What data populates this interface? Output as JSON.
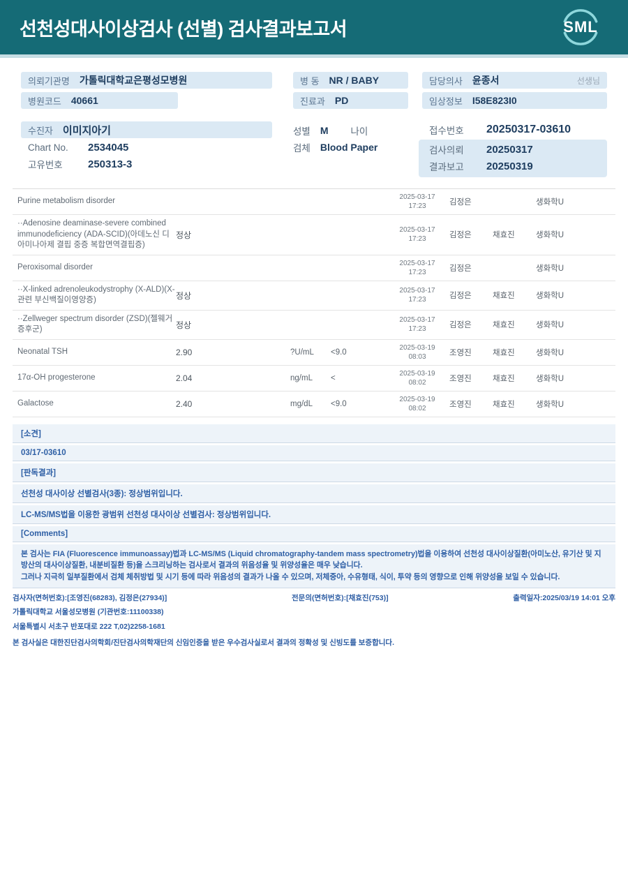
{
  "header": {
    "title": "선천성대사이상검사 (선별) 검사결과보고서",
    "logo_text": "SML"
  },
  "info": {
    "left": [
      {
        "label": "의뢰기관명",
        "value": "가톨릭대학교은평성모병원"
      },
      {
        "label": "병원코드",
        "value": "40661"
      }
    ],
    "middle": [
      {
        "label": "병  동",
        "value": "NR / BABY"
      },
      {
        "label": "진료과",
        "value": "PD"
      }
    ],
    "right": [
      {
        "label": "담당의사",
        "value": "윤종서",
        "suffix": "선생님"
      },
      {
        "label": "임상정보",
        "value": "I58E823I0"
      }
    ]
  },
  "patient": {
    "name_row": {
      "label": "수진자",
      "value": "이미지아기"
    },
    "chart_row": {
      "label": "Chart No.",
      "value": "2534045"
    },
    "uid_row": {
      "label": "고유번호",
      "value": "250313-3"
    },
    "sex_label": "성별",
    "sex_value": "M",
    "age_label": "나이",
    "age_value": "",
    "specimen_label": "검체",
    "specimen_value": "Blood Paper",
    "receipt": {
      "label": "접수번호",
      "value": "20250317-03610"
    },
    "request": {
      "label": "검사의뢰",
      "value": "20250317"
    },
    "report": {
      "label": "결과보고",
      "value": "20250319"
    }
  },
  "results_rows": [
    {
      "name": "Purine metabolism disorder",
      "result": "",
      "unit": "",
      "ref": "",
      "date": "2025-03-17",
      "time": "17:23",
      "analyst": "김정은",
      "reviewer": "",
      "dept": "생화학U"
    },
    {
      "name": "··Adenosine deaminase-severe combined immunodeficiency (ADA-SCID)(아데노신 디아미나아제 결핍 중증 복합면역결핍증)",
      "result": "정상",
      "unit": "",
      "ref": "",
      "date": "2025-03-17",
      "time": "17:23",
      "analyst": "김정은",
      "reviewer": "채효진",
      "dept": "생화학U"
    },
    {
      "name": "Peroxisomal disorder",
      "result": "",
      "unit": "",
      "ref": "",
      "date": "2025-03-17",
      "time": "17:23",
      "analyst": "김정은",
      "reviewer": "",
      "dept": "생화학U"
    },
    {
      "name": "··X-linked adrenoleukodystrophy (X-ALD)(X-관련 부신백질이영양증)",
      "result": "정상",
      "unit": "",
      "ref": "",
      "date": "2025-03-17",
      "time": "17:23",
      "analyst": "김정은",
      "reviewer": "채효진",
      "dept": "생화학U"
    },
    {
      "name": "··Zellweger spectrum disorder (ZSD)(젤웨거 증후군)",
      "result": "정상",
      "unit": "",
      "ref": "",
      "date": "2025-03-17",
      "time": "17:23",
      "analyst": "김정은",
      "reviewer": "채효진",
      "dept": "생화학U"
    },
    {
      "name": "Neonatal TSH",
      "result": "2.90",
      "unit": "?U/mL",
      "ref": "<9.0",
      "date": "2025-03-19",
      "time": "08:03",
      "analyst": "조영진",
      "reviewer": "채효진",
      "dept": "생화학U"
    },
    {
      "name": "17α-OH progesterone",
      "result": "2.04",
      "unit": "ng/mL",
      "ref": "<",
      "date": "2025-03-19",
      "time": "08:02",
      "analyst": "조영진",
      "reviewer": "채효진",
      "dept": "생화학U"
    },
    {
      "name": "Galactose",
      "result": "2.40",
      "unit": "mg/dL",
      "ref": "<9.0",
      "date": "2025-03-19",
      "time": "08:02",
      "analyst": "조영진",
      "reviewer": "채효진",
      "dept": "생화학U"
    }
  ],
  "findings_rows": [
    "[소견]",
    "03/17-03610",
    "[판독결과]",
    "선천성 대사이상 선별검사(3종): 정상범위입니다.",
    "LC-MS/MS법을 이용한 광범위 선천성 대사이상 선별검사: 정상범위입니다.",
    "[Comments]"
  ],
  "comment_lines": [
    "본 검사는 FIA (Fluorescence immunoassay)법과 LC-MS/MS (Liquid chromatography-tandem mass spectrometry)법을 이용하여 선천성 대사이상질환(아미노산, 유기산 및 지방산의 대사이상질환, 내분비질환 등)을 스크리닝하는 검사로서 결과의 위음성율 및 위양성율은 매우 낮습니다.",
    "그러나 지극히 일부질환에서 검체 체취방법 및 시기 등에 따라 위음성의 결과가 나올 수 있으며, 저체중아, 수유형태, 식이, 투약 등의 영향으로 인해 위양성을 보일 수 있습니다."
  ],
  "footer": {
    "line1_left": "검사자(면허번호):[조영진(68283), 김정은(27934)]",
    "line1_mid": "전문의(면허번호):[채효진(753)]",
    "line1_right": "출력일자:2025/03/19 14:01 오후",
    "line2": "가톨릭대학교 서울성모병원 (기관번호:11100338)",
    "line3": "서울특별시 서초구 반포대로 222 T,02)2258-1681",
    "line4": "본 검사실은 대한진단검사의학회/진단검사의학재단의 신임인증을 받은 우수검사실로서 결과의 정확성 및 신빙도를 보증합니다."
  },
  "colors": {
    "header_teal": "#156b76",
    "header_underline": "#c5dde4",
    "bar_blue": "#dbe9f4",
    "text_navy": "#1e3d5f",
    "text_blue": "#2e5fa5",
    "logo_arc": "#8ed7dc"
  }
}
